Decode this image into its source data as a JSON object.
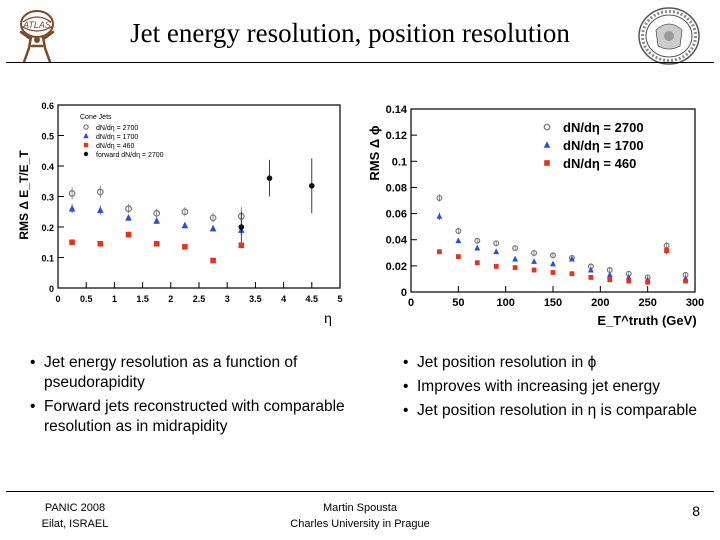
{
  "slide": {
    "title": "Jet energy resolution, position resolution",
    "logo_left_text": "ATLAS",
    "footer_left_line1": "PANIC 2008",
    "footer_left_line2": "Eilat, ISRAEL",
    "footer_center_line1": "Martin Spousta",
    "footer_center_line2": "Charles University in Prague",
    "page_number": "8"
  },
  "bullets_left": [
    "Jet energy resolution as a function of pseudorapidity",
    "Forward jets reconstructed with comparable resolution as in midrapidity"
  ],
  "bullets_right": [
    "Jet position resolution in ϕ",
    "Improves with increasing jet energy",
    "Jet position resolution in η is comparable"
  ],
  "colors": {
    "red": "#e8321e",
    "blue": "#2a4fd6",
    "open": "#777777",
    "black": "#111111"
  },
  "chart_data": [
    {
      "type": "scatter",
      "title": "",
      "xlabel": "η",
      "ylabel": "RMS Δ E_T/E_T",
      "xlim": [
        0,
        5
      ],
      "ylim": [
        0,
        0.6
      ],
      "xticks": [
        "0",
        "0.5",
        "1",
        "1.5",
        "2",
        "2.5",
        "3",
        "3.5",
        "4",
        "4.5",
        "5"
      ],
      "yticks": [
        "0",
        "0.1",
        "0.2",
        "0.3",
        "0.4",
        "0.5",
        "0.6"
      ],
      "legend_title": "Cone Jets",
      "legend_position": "top-left",
      "series": [
        {
          "name": "dN/dη = 2700",
          "marker": "open-circle",
          "x": [
            0.25,
            0.75,
            1.25,
            1.75,
            2.25,
            2.75,
            3.25
          ],
          "y": [
            0.31,
            0.315,
            0.26,
            0.245,
            0.25,
            0.23,
            0.235
          ],
          "err": [
            0.02,
            0.02,
            0.015,
            0.015,
            0.015,
            0.015,
            0.03
          ]
        },
        {
          "name": "dN/dη = 1700",
          "marker": "triangle",
          "x": [
            0.25,
            0.75,
            1.25,
            1.75,
            2.25,
            2.75,
            3.25
          ],
          "y": [
            0.26,
            0.255,
            0.23,
            0.22,
            0.205,
            0.195,
            0.19
          ],
          "err": [
            0.015,
            0.015,
            0.01,
            0.01,
            0.01,
            0.01,
            0.015
          ]
        },
        {
          "name": "dN/dη = 460",
          "marker": "square",
          "x": [
            0.25,
            0.75,
            1.25,
            1.75,
            2.25,
            2.75,
            3.25
          ],
          "y": [
            0.15,
            0.145,
            0.175,
            0.145,
            0.135,
            0.09,
            0.14
          ],
          "err": [
            0.008,
            0.008,
            0.01,
            0.008,
            0.008,
            0.006,
            0.01
          ]
        },
        {
          "name": "forward dN/dη = 2700",
          "marker": "filled-circle",
          "x": [
            3.25,
            3.75,
            4.5
          ],
          "y": [
            0.2,
            0.36,
            0.335
          ],
          "err": [
            0.05,
            0.06,
            0.09
          ]
        }
      ]
    },
    {
      "type": "scatter",
      "title": "",
      "xlabel": "E_T^truth (GeV)",
      "ylabel": "RMS Δ ϕ",
      "xlim": [
        0,
        300
      ],
      "ylim": [
        0,
        0.15
      ],
      "xticks": [
        "0",
        "50",
        "100",
        "150",
        "200",
        "250",
        "300"
      ],
      "yticks": [
        "0",
        "0.02",
        "0.04",
        "0.06",
        "0.08",
        "0.1",
        "0.12",
        "0.14"
      ],
      "legend_position": "top-right",
      "series": [
        {
          "name": "dN/dη = 2700",
          "marker": "open-circle",
          "x": [
            30,
            50,
            70,
            90,
            110,
            130,
            150,
            170,
            190,
            210,
            230,
            250,
            270,
            290
          ],
          "y": [
            0.077,
            0.05,
            0.042,
            0.04,
            0.036,
            0.032,
            0.03,
            0.028,
            0.021,
            0.018,
            0.015,
            0.012,
            0.038,
            0.014
          ],
          "err": [
            0.003,
            0.002,
            0.002,
            0.002,
            0.002,
            0.002,
            0.002,
            0.002,
            0.002,
            0.002,
            0.002,
            0.002,
            0.003,
            0.002
          ]
        },
        {
          "name": "dN/dη = 1700",
          "marker": "triangle",
          "x": [
            30,
            50,
            70,
            90,
            110,
            130,
            150,
            170,
            190,
            210,
            230,
            250,
            270,
            290
          ],
          "y": [
            0.062,
            0.042,
            0.036,
            0.033,
            0.027,
            0.025,
            0.023,
            0.027,
            0.018,
            0.014,
            0.012,
            0.01,
            0.034,
            0.011
          ],
          "err": [
            0.003,
            0.002,
            0.002,
            0.002,
            0.002,
            0.002,
            0.002,
            0.002,
            0.002,
            0.002,
            0.002,
            0.002,
            0.003,
            0.002
          ]
        },
        {
          "name": "dN/dη = 460",
          "marker": "square",
          "x": [
            30,
            50,
            70,
            90,
            110,
            130,
            150,
            170,
            190,
            210,
            230,
            250,
            270,
            290
          ],
          "y": [
            0.033,
            0.029,
            0.024,
            0.021,
            0.02,
            0.018,
            0.016,
            0.015,
            0.012,
            0.01,
            0.009,
            0.008,
            0.034,
            0.009
          ],
          "err": [
            0.002,
            0.002,
            0.002,
            0.002,
            0.002,
            0.002,
            0.002,
            0.002,
            0.002,
            0.002,
            0.002,
            0.002,
            0.003,
            0.002
          ]
        }
      ]
    }
  ]
}
